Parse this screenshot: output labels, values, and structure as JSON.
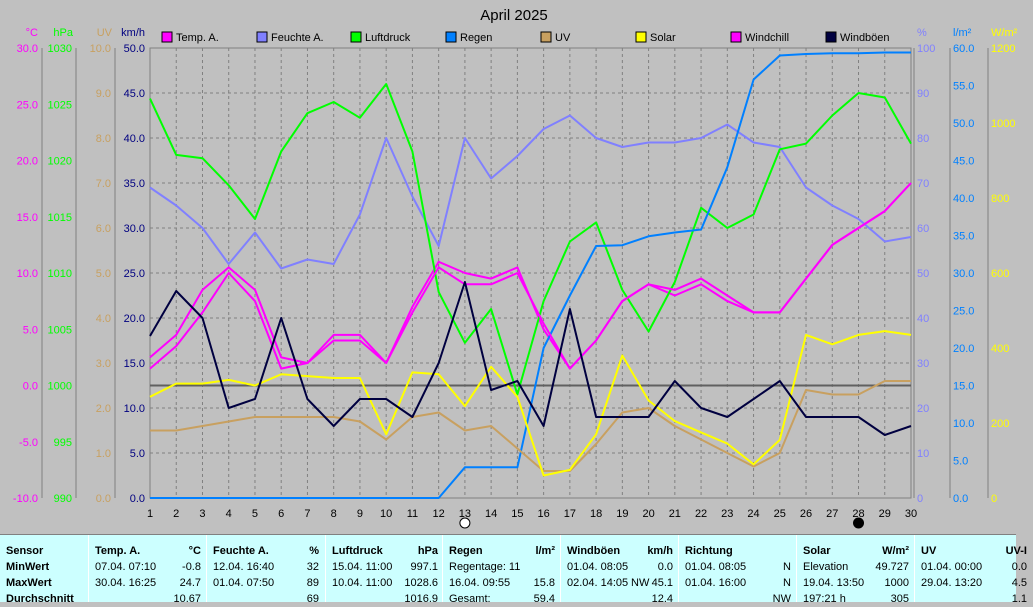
{
  "chart_data": {
    "type": "line",
    "title": "April 2025",
    "x": [
      1,
      2,
      3,
      4,
      5,
      6,
      7,
      8,
      9,
      10,
      11,
      12,
      13,
      14,
      15,
      16,
      17,
      18,
      19,
      20,
      21,
      22,
      23,
      24,
      25,
      26,
      27,
      28,
      29,
      30
    ],
    "axes": {
      "temp": {
        "unit": "°C",
        "min": -10,
        "max": 30,
        "ticks": [
          "30.0",
          "25.0",
          "20.0",
          "15.0",
          "10.0",
          "5.0",
          "0.0",
          "-5.0",
          "-10.0"
        ],
        "color": "#ff00ff"
      },
      "pressure": {
        "unit": "hPa",
        "min": 990,
        "max": 1030,
        "ticks": [
          "1030",
          "1025",
          "1020",
          "1015",
          "1010",
          "1005",
          "1000",
          "995",
          "990"
        ],
        "color": "#00ff00"
      },
      "uv": {
        "unit": "UV",
        "min": 0,
        "max": 10,
        "ticks": [
          "10.0",
          "9.0",
          "8.0",
          "7.0",
          "6.0",
          "5.0",
          "4.0",
          "3.0",
          "2.0",
          "1.0",
          "0.0"
        ],
        "color": "#c8a060"
      },
      "wind": {
        "unit": "km/h",
        "min": 0,
        "max": 50,
        "ticks": [
          "50.0",
          "45.0",
          "40.0",
          "35.0",
          "30.0",
          "25.0",
          "20.0",
          "15.0",
          "10.0",
          "5.0",
          "0.0"
        ],
        "color": "#000080"
      },
      "humidity": {
        "unit": "%",
        "min": 0,
        "max": 100,
        "ticks": [
          "100",
          "90",
          "80",
          "70",
          "60",
          "50",
          "40",
          "30",
          "20",
          "10",
          "0"
        ],
        "color": "#8080ff"
      },
      "rain": {
        "unit": "l/m²",
        "min": 0,
        "max": 60,
        "ticks": [
          "60.0",
          "55.0",
          "50.0",
          "45.0",
          "40.0",
          "35.0",
          "30.0",
          "25.0",
          "20.0",
          "15.0",
          "10.0",
          "5.0",
          "0.0"
        ],
        "color": "#0080ff"
      },
      "solar": {
        "unit": "W/m²",
        "min": 0,
        "max": 1200,
        "ticks": [
          "1200",
          "1000",
          "800",
          "600",
          "400",
          "200",
          "0"
        ],
        "color": "#ffff00"
      }
    },
    "x_ticks": [
      "1",
      "2",
      "3",
      "4",
      "5",
      "6",
      "7",
      "8",
      "9",
      "10",
      "11",
      "12",
      "13",
      "14",
      "15",
      "16",
      "17",
      "18",
      "19",
      "20",
      "21",
      "22",
      "23",
      "24",
      "25",
      "26",
      "27",
      "28",
      "29",
      "30"
    ],
    "moon": {
      "full_day": 13,
      "new_day": 28
    },
    "series": [
      {
        "name": "Temp. A.",
        "axis": "temp",
        "color": "#ff00ff",
        "values": [
          2.5,
          4.5,
          8.5,
          10.5,
          8.5,
          2.5,
          2.0,
          4.5,
          4.5,
          2.0,
          7.0,
          11.0,
          10.0,
          9.5,
          10.5,
          5.0,
          1.5,
          4.0,
          7.5,
          9.0,
          8.0,
          9.0,
          7.5,
          6.5,
          6.5,
          9.5,
          12.5,
          14.0,
          15.5,
          18.0
        ]
      },
      {
        "name": "Feuchte A.",
        "axis": "humidity",
        "color": "#8080ff",
        "values": [
          69,
          65,
          60,
          52,
          59,
          51,
          53,
          52,
          63,
          80,
          67,
          56,
          80,
          71,
          76,
          82,
          85,
          80,
          78,
          79,
          79,
          80,
          83,
          79,
          78,
          69,
          65,
          62,
          57,
          58
        ]
      },
      {
        "name": "Luftdruck",
        "axis": "pressure",
        "color": "#00ff00",
        "values": [
          1025.5,
          1020.5,
          1020.2,
          1017.8,
          1014.8,
          1020.8,
          1024.2,
          1025.2,
          1023.8,
          1026.8,
          1020.8,
          1008.3,
          1003.8,
          1006.8,
          999.2,
          1007.5,
          1012.8,
          1014.5,
          1008.5,
          1004.8,
          1009.2,
          1015.8,
          1014.0,
          1015.2,
          1021.0,
          1021.5,
          1024.0,
          1026.0,
          1025.6,
          1021.5
        ]
      },
      {
        "name": "Regen",
        "axis": "rain",
        "color": "#0080ff",
        "values": [
          0,
          0,
          0,
          0,
          0,
          0,
          0,
          0,
          0,
          0,
          0,
          0,
          4.1,
          4.1,
          4.1,
          20.0,
          27.0,
          33.6,
          33.7,
          34.9,
          35.4,
          35.8,
          44.1,
          55.8,
          59.0,
          59.2,
          59.3,
          59.3,
          59.4,
          59.4
        ]
      },
      {
        "name": "UV",
        "axis": "uv",
        "color": "#c8a060",
        "values": [
          1.5,
          1.5,
          1.6,
          1.7,
          1.8,
          1.8,
          1.8,
          1.8,
          1.7,
          1.3,
          1.8,
          1.9,
          1.5,
          1.6,
          1.1,
          0.6,
          0.6,
          1.2,
          1.9,
          2.0,
          1.6,
          1.3,
          1.0,
          0.7,
          1.0,
          2.4,
          2.3,
          2.3,
          2.6,
          2.6
        ]
      },
      {
        "name": "Solar",
        "axis": "solar",
        "color": "#ffff00",
        "values": [
          270,
          305,
          305,
          315,
          300,
          330,
          325,
          320,
          320,
          170,
          335,
          330,
          245,
          350,
          270,
          60,
          75,
          170,
          380,
          260,
          205,
          175,
          145,
          90,
          155,
          435,
          410,
          435,
          445,
          435
        ]
      },
      {
        "name": "Windchill",
        "axis": "temp",
        "color": "#ff00ff",
        "values": [
          1.5,
          3.5,
          6.5,
          10.0,
          7.5,
          1.5,
          2.0,
          4.0,
          4.0,
          2.0,
          6.5,
          10.5,
          9.0,
          9.0,
          10.0,
          5.5,
          1.5,
          4.0,
          7.5,
          9.0,
          8.5,
          9.5,
          8.0,
          6.5,
          6.5,
          9.5,
          12.5,
          14.0,
          15.5,
          18.0
        ]
      },
      {
        "name": "Windböen",
        "axis": "wind",
        "color": "#000040",
        "values": [
          18,
          23,
          20,
          10,
          11,
          20,
          11,
          8,
          11,
          11,
          9,
          15,
          24,
          12,
          13,
          8,
          21,
          9,
          9,
          9,
          13,
          10,
          9,
          11,
          13,
          9,
          9,
          9,
          7,
          8
        ]
      }
    ]
  },
  "table": {
    "row_labels": [
      "Sensor",
      "MinWert",
      "MaxWert",
      "Durchschnitt"
    ],
    "columns": [
      {
        "key": "temp",
        "header": "Temp. A.",
        "unit": "°C",
        "min_date": "07.04.  07:10",
        "min_val": "-0.8",
        "max_date": "30.04.  16:25",
        "max_val": "24.7",
        "avg": "10.67"
      },
      {
        "key": "hum",
        "header": "Feuchte A.",
        "unit": "%",
        "min_date": "12.04.  16:40",
        "min_val": "32",
        "max_date": "01.04.  07:50",
        "max_val": "89",
        "avg": "69"
      },
      {
        "key": "press",
        "header": "Luftdruck",
        "unit": "hPa",
        "min_date": "15.04.  11:00",
        "min_val": "997.1",
        "max_date": "10.04.  11:00",
        "max_val": "1028.6",
        "avg": "1016.9"
      },
      {
        "key": "rain",
        "header": "Regen",
        "unit": "l/m²",
        "min_date": "Regentage: 11",
        "min_val": "",
        "max_date": "16.04.  09:55",
        "max_val": "15.8",
        "avg_label": "Gesamt:",
        "avg": "59.4"
      },
      {
        "key": "gust",
        "header": "Windböen",
        "unit": "km/h",
        "min_date": "01.04.  08:05",
        "min_val": "0.0",
        "max_date": "02.04.  14:05",
        "max_extra": "NW",
        "max_val": "45.1",
        "avg": "12.4"
      },
      {
        "key": "dir",
        "header": "Richtung",
        "unit": "",
        "min_date": "01.04.  08:05",
        "min_val": "N",
        "max_date": "01.04.  16:00",
        "max_val": "N",
        "avg": "NW"
      },
      {
        "key": "solar",
        "header": "Solar",
        "unit": "W/m²",
        "min_date": "Elevation",
        "min_val": "49.727",
        "max_date": "19.04.  13:50",
        "max_val": "1000",
        "avg_label": "197:21 h",
        "avg": "305"
      },
      {
        "key": "uv",
        "header": "UV",
        "unit": "UV-I",
        "min_date": "01.04.  00:00",
        "min_val": "0.0",
        "max_date": "29.04.  13:20",
        "max_val": "4.5",
        "avg": "1.1"
      }
    ]
  }
}
